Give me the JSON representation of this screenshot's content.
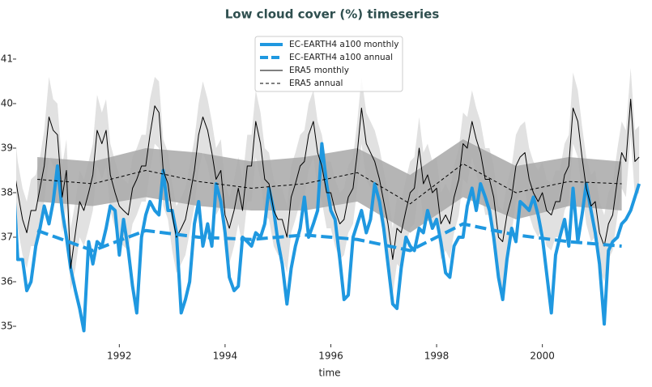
{
  "chart_data": {
    "type": "line",
    "title": "Low cloud cover (%) timeseries",
    "xlabel": "time",
    "xlim": [
      1990.05,
      2001.92
    ],
    "ylim": [
      34.6,
      41.69
    ],
    "xticks": [
      1992,
      1994,
      1996,
      1998,
      2000
    ],
    "yticks": [
      35,
      36,
      37,
      38,
      39,
      40,
      41
    ],
    "grid": false,
    "legend": "upper center",
    "monthly": {
      "x": [
        1990,
        1990.08,
        1990.17,
        1990.25,
        1990.33,
        1990.42,
        1990.5,
        1990.58,
        1990.67,
        1990.75,
        1990.83,
        1990.92,
        1991,
        1991.08,
        1991.17,
        1991.25,
        1991.33,
        1991.42,
        1991.5,
        1991.58,
        1991.67,
        1991.75,
        1991.83,
        1991.92,
        1992,
        1992.08,
        1992.17,
        1992.25,
        1992.33,
        1992.42,
        1992.5,
        1992.58,
        1992.67,
        1992.75,
        1992.83,
        1992.92,
        1993,
        1993.08,
        1993.17,
        1993.25,
        1993.33,
        1993.42,
        1993.5,
        1993.58,
        1993.67,
        1993.75,
        1993.83,
        1993.92,
        1994,
        1994.08,
        1994.17,
        1994.25,
        1994.33,
        1994.42,
        1994.5,
        1994.58,
        1994.67,
        1994.75,
        1994.83,
        1994.92,
        1995,
        1995.08,
        1995.17,
        1995.25,
        1995.33,
        1995.42,
        1995.5,
        1995.58,
        1995.67,
        1995.75,
        1995.83,
        1995.92,
        1996,
        1996.08,
        1996.17,
        1996.25,
        1996.33,
        1996.42,
        1996.5,
        1996.58,
        1996.67,
        1996.75,
        1996.83,
        1996.92,
        1997,
        1997.08,
        1997.17,
        1997.25,
        1997.33,
        1997.42,
        1997.5,
        1997.58,
        1997.67,
        1997.75,
        1997.83,
        1997.92,
        1998,
        1998.08,
        1998.17,
        1998.25,
        1998.33,
        1998.42,
        1998.5,
        1998.58,
        1998.67,
        1998.75,
        1998.83,
        1998.92,
        1999,
        1999.08,
        1999.17,
        1999.25,
        1999.33,
        1999.42,
        1999.5,
        1999.58,
        1999.67,
        1999.75,
        1999.83,
        1999.92,
        2000,
        2000.08,
        2000.17,
        2000.25,
        2000.33,
        2000.42,
        2000.5,
        2000.58,
        2000.67,
        2000.75,
        2000.83,
        2000.92,
        2001,
        2001.08,
        2001.17,
        2001.25,
        2001.33,
        2001.42,
        2001.5,
        2001.58,
        2001.67,
        2001.75,
        2001.83
      ],
      "band": {
        "color": "#dcdcdc",
        "upper": [
          39.6,
          38.7,
          38.1,
          37.8,
          38.3,
          38.4,
          38.8,
          39.4,
          40.6,
          40.1,
          40.0,
          38.6,
          39.2,
          37.2,
          37.8,
          38.5,
          38.3,
          38.7,
          39.1,
          40.2,
          39.8,
          40.1,
          39.1,
          38.7,
          38.4,
          38.3,
          38.2,
          38.8,
          39.0,
          39.3,
          39.3,
          40.1,
          40.6,
          40.5,
          39.2,
          38.9,
          38.2,
          37.7,
          37.9,
          38.1,
          38.6,
          39.2,
          40.0,
          40.5,
          40.1,
          39.6,
          39.0,
          39.2,
          38.2,
          37.9,
          38.3,
          38.8,
          38.3,
          39.3,
          39.3,
          40.3,
          39.8,
          39.0,
          38.9,
          38.3,
          38.1,
          38.1,
          37.7,
          38.6,
          38.9,
          39.3,
          39.4,
          40.0,
          40.3,
          39.6,
          39.3,
          38.7,
          38.7,
          38.3,
          38.0,
          38.1,
          38.6,
          38.8,
          39.6,
          40.6,
          39.8,
          39.6,
          39.4,
          39.0,
          38.5,
          38.0,
          37.2,
          37.9,
          37.8,
          38.3,
          38.7,
          38.8,
          39.7,
          38.9,
          39.1,
          38.7,
          38.8,
          38.0,
          38.2,
          38.0,
          38.6,
          39.0,
          39.8,
          39.7,
          40.3,
          39.9,
          39.6,
          39.0,
          39.0,
          38.6,
          37.7,
          37.6,
          38.2,
          38.6,
          39.3,
          39.5,
          39.6,
          39.0,
          38.7,
          38.5,
          38.7,
          38.3,
          38.2,
          38.5,
          38.5,
          39.1,
          39.3,
          40.7,
          40.3,
          39.5,
          38.8,
          38.4,
          38.5,
          37.8,
          37.5,
          38.0,
          38.2,
          39.0,
          39.6,
          39.4,
          40.8,
          39.4,
          39.5
        ],
        "lower": [
          37.8,
          37.2,
          36.6,
          36.3,
          36.8,
          36.8,
          37.3,
          37.8,
          38.8,
          38.6,
          38.5,
          37.1,
          37.7,
          35.8,
          36.3,
          37.0,
          36.8,
          37.2,
          37.6,
          38.6,
          38.3,
          38.6,
          37.6,
          37.2,
          36.9,
          36.8,
          36.7,
          37.3,
          37.5,
          37.8,
          37.8,
          38.5,
          39.1,
          39.0,
          37.7,
          37.4,
          36.7,
          36.2,
          36.4,
          36.6,
          37.1,
          37.7,
          38.5,
          38.9,
          38.6,
          38.1,
          37.5,
          37.7,
          36.7,
          36.4,
          36.8,
          37.3,
          36.8,
          37.8,
          37.8,
          38.8,
          38.3,
          37.5,
          37.4,
          36.8,
          36.6,
          36.6,
          36.2,
          37.1,
          37.4,
          37.8,
          37.9,
          38.5,
          38.8,
          38.1,
          37.8,
          37.2,
          37.2,
          36.8,
          36.5,
          36.6,
          37.1,
          37.3,
          38.1,
          39.1,
          38.3,
          38.1,
          37.9,
          37.5,
          37.0,
          36.5,
          35.7,
          36.4,
          36.3,
          36.8,
          37.2,
          37.3,
          38.2,
          37.4,
          37.6,
          37.2,
          37.3,
          36.5,
          36.7,
          36.5,
          37.1,
          37.5,
          38.3,
          38.2,
          38.8,
          38.4,
          38.1,
          37.5,
          37.5,
          37.1,
          36.2,
          35.6,
          36.7,
          37.1,
          37.8,
          38.0,
          38.1,
          37.5,
          37.2,
          37.0,
          37.2,
          36.8,
          36.7,
          37.0,
          37.0,
          37.6,
          37.8,
          39.1,
          38.8,
          38.0,
          37.3,
          36.9,
          37.0,
          36.3,
          36.0,
          36.5,
          36.7,
          37.5,
          38.1,
          37.9,
          39.3,
          37.9,
          38.0
        ]
      },
      "series": [
        {
          "name": "EC-EARTH4 a100 monthly",
          "color": "#1f98e0",
          "width": 4,
          "dashed": false,
          "values": [
            38.2,
            36.5,
            36.5,
            35.8,
            36.0,
            36.8,
            37.2,
            37.7,
            37.3,
            37.8,
            38.6,
            37.6,
            37.0,
            36.3,
            35.8,
            35.4,
            34.9,
            36.9,
            36.4,
            36.9,
            36.8,
            37.2,
            37.7,
            37.6,
            36.6,
            37.4,
            36.7,
            35.9,
            35.3,
            37.0,
            37.5,
            37.8,
            37.6,
            37.5,
            38.5,
            37.6,
            37.6,
            37.1,
            35.3,
            35.6,
            36.0,
            37.3,
            37.8,
            36.8,
            37.3,
            36.8,
            38.2,
            37.8,
            37.1,
            36.1,
            35.8,
            35.9,
            37.0,
            36.9,
            36.8,
            37.1,
            37.0,
            37.3,
            38.1,
            37.6,
            36.9,
            36.4,
            35.5,
            36.3,
            36.8,
            37.2,
            37.9,
            37.0,
            37.3,
            37.6,
            39.1,
            38.2,
            37.6,
            37.4,
            36.5,
            35.6,
            35.7,
            37.0,
            37.3,
            37.6,
            37.1,
            37.4,
            38.2,
            37.8,
            37.2,
            36.4,
            35.5,
            35.4,
            36.3,
            37.0,
            36.8,
            36.7,
            37.2,
            37.1,
            37.6,
            37.2,
            37.4,
            36.9,
            36.2,
            36.1,
            36.8,
            37.0,
            37.0,
            37.7,
            38.1,
            37.6,
            38.2,
            37.9,
            37.6,
            37.0,
            36.1,
            35.6,
            36.5,
            37.2,
            36.9,
            37.8,
            37.7,
            37.6,
            37.9,
            37.5,
            37.0,
            36.2,
            35.3,
            36.6,
            37.0,
            37.4,
            36.8,
            38.1,
            36.9,
            37.5,
            38.2,
            37.6,
            37.1,
            36.4,
            35.05,
            36.7,
            36.9,
            37.0,
            37.3,
            37.4,
            37.6,
            37.9,
            38.2
          ]
        },
        {
          "name": "ERA5 monthly",
          "color": "#000000",
          "width": 1,
          "dashed": false,
          "values": [
            38.6,
            38.0,
            37.4,
            37.1,
            37.6,
            37.6,
            38.1,
            38.6,
            39.7,
            39.4,
            39.3,
            37.9,
            38.5,
            36.3,
            37.1,
            37.8,
            37.6,
            38.0,
            38.4,
            39.4,
            39.1,
            39.4,
            38.4,
            38.0,
            37.7,
            37.6,
            37.5,
            38.1,
            38.3,
            38.6,
            38.6,
            39.3,
            39.95,
            39.8,
            38.5,
            38.2,
            37.5,
            37.0,
            37.2,
            37.4,
            37.9,
            38.5,
            39.3,
            39.7,
            39.4,
            38.9,
            38.3,
            38.5,
            37.5,
            37.2,
            37.6,
            38.1,
            37.6,
            38.6,
            38.6,
            39.6,
            39.1,
            38.3,
            38.2,
            37.6,
            37.4,
            37.4,
            37.0,
            37.9,
            38.2,
            38.6,
            38.7,
            39.3,
            39.6,
            38.9,
            38.6,
            38.0,
            38.0,
            37.6,
            37.3,
            37.4,
            37.9,
            38.1,
            38.9,
            39.9,
            39.1,
            38.9,
            38.7,
            38.3,
            37.8,
            37.3,
            36.5,
            37.2,
            37.1,
            37.6,
            38.0,
            38.1,
            39.0,
            38.2,
            38.4,
            38.0,
            38.1,
            37.3,
            37.5,
            37.3,
            37.9,
            38.3,
            39.1,
            39.0,
            39.6,
            39.2,
            38.9,
            38.3,
            38.3,
            37.9,
            37.0,
            36.9,
            37.5,
            37.9,
            38.6,
            38.8,
            38.9,
            38.3,
            38.0,
            37.8,
            38.0,
            37.6,
            37.5,
            37.8,
            37.8,
            38.4,
            38.6,
            39.9,
            39.6,
            38.8,
            38.1,
            37.7,
            37.8,
            37.1,
            36.8,
            37.3,
            37.5,
            38.3,
            38.9,
            38.7,
            40.1,
            38.7,
            38.8
          ]
        }
      ]
    },
    "annual": {
      "x": [
        1990.45,
        1991.5,
        1992.5,
        1993.5,
        1994.5,
        1995.5,
        1996.5,
        1997.5,
        1998.5,
        1999.5,
        2000.5,
        2001.5
      ],
      "band": {
        "color": "#a8a8a8",
        "upper": [
          38.8,
          38.7,
          39.0,
          38.9,
          38.7,
          38.8,
          39.0,
          38.4,
          39.2,
          38.6,
          38.8,
          38.7
        ],
        "lower": [
          37.8,
          37.7,
          37.9,
          37.7,
          37.6,
          37.6,
          37.8,
          37.1,
          37.9,
          37.4,
          37.7,
          37.6
        ]
      },
      "series": [
        {
          "name": "EC-EARTH4 a100 annual",
          "color": "#1f98e0",
          "width": 4,
          "dashed": true,
          "values": [
            37.15,
            36.7,
            37.15,
            37.0,
            36.95,
            37.05,
            36.95,
            36.7,
            37.3,
            37.05,
            36.9,
            36.8
          ]
        },
        {
          "name": "ERA5 annual",
          "color": "#000000",
          "width": 1,
          "dashed": true,
          "values": [
            38.3,
            38.2,
            38.5,
            38.25,
            38.1,
            38.2,
            38.45,
            37.75,
            38.65,
            38.0,
            38.25,
            38.2
          ]
        }
      ]
    }
  }
}
